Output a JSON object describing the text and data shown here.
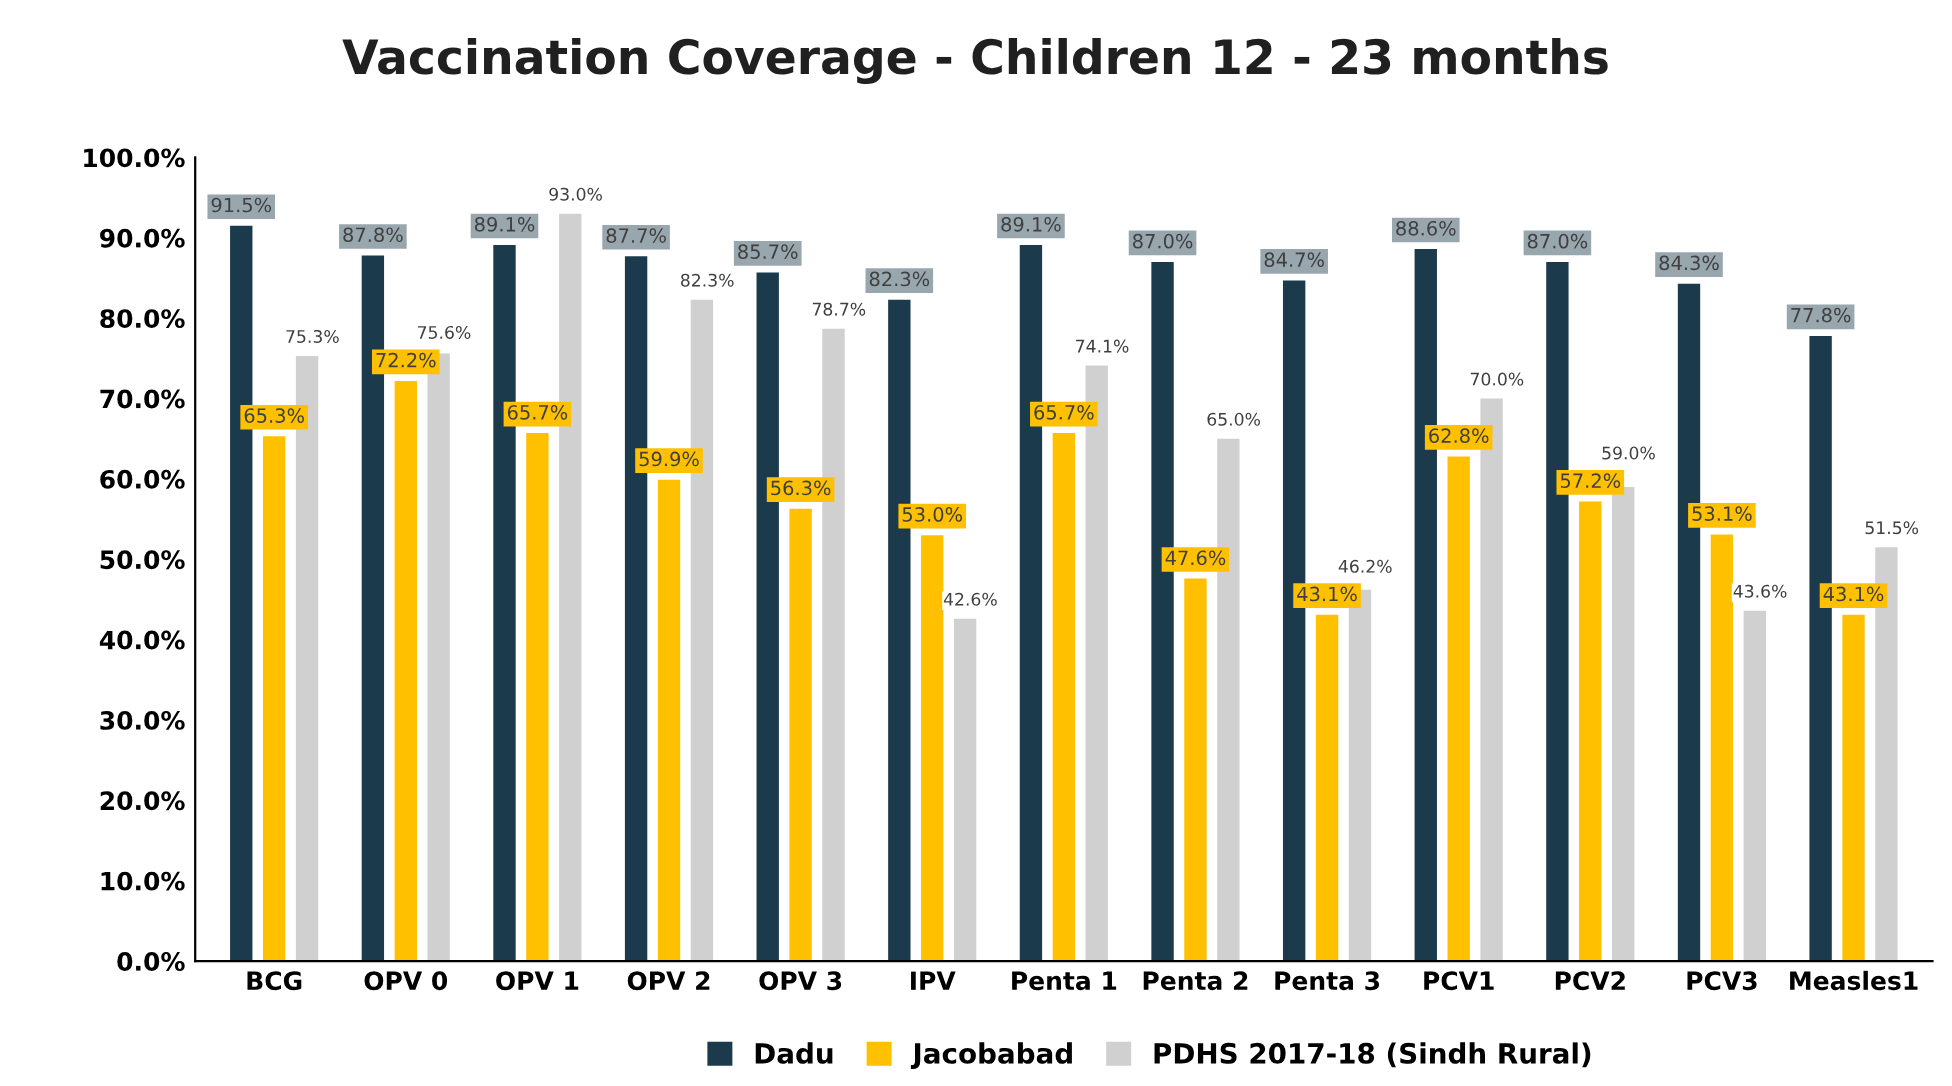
{
  "chart_data": {
    "type": "bar",
    "title": "Vaccination Coverage - Children 12 - 23 months",
    "categories": [
      "BCG",
      "OPV 0",
      "OPV 1",
      "OPV 2",
      "OPV 3",
      "IPV",
      "Penta 1",
      "Penta 2",
      "Penta 3",
      "PCV1",
      "PCV2",
      "PCV3",
      "Measles1"
    ],
    "series": [
      {
        "name": "Dadu",
        "color": "#1b3a4b",
        "values": [
          91.5,
          87.8,
          89.1,
          87.7,
          85.7,
          82.3,
          89.1,
          87.0,
          84.7,
          88.6,
          87.0,
          84.3,
          77.8
        ],
        "value_labels": [
          "91.5%",
          "87.8%",
          "89.1%",
          "87.7%",
          "85.7%",
          "82.3%",
          "89.1%",
          "87.0%",
          "84.7%",
          "88.6%",
          "87.0%",
          "84.3%",
          "77.8%"
        ]
      },
      {
        "name": "Jacobabad",
        "color": "#ffc000",
        "values": [
          65.3,
          72.2,
          65.7,
          59.9,
          56.3,
          53.0,
          65.7,
          47.6,
          43.1,
          62.8,
          57.2,
          53.1,
          43.1
        ],
        "value_labels": [
          "65.3%",
          "72.2%",
          "65.7%",
          "59.9%",
          "56.3%",
          "53.0%",
          "65.7%",
          "47.6%",
          "43.1%",
          "62.8%",
          "57.2%",
          "53.1%",
          "43.1%"
        ]
      },
      {
        "name": "PDHS 2017-18 (Sindh Rural)",
        "color": "#d0d0d0",
        "values": [
          75.3,
          75.6,
          93.0,
          82.3,
          78.7,
          42.6,
          74.1,
          65.0,
          46.2,
          70.0,
          59.0,
          43.6,
          51.5
        ],
        "value_labels": [
          "75.3%",
          "75.6%",
          "93.0%",
          "82.3%",
          "78.7%",
          "42.6%",
          "74.1%",
          "65.0%",
          "46.2%",
          "70.0%",
          "59.0%",
          "43.6%",
          "51.5%"
        ]
      }
    ],
    "ylim": [
      0,
      100
    ],
    "yticks": [
      {
        "value": 0,
        "label": "0.0%"
      },
      {
        "value": 10,
        "label": "10.0%"
      },
      {
        "value": 20,
        "label": "20.0%"
      },
      {
        "value": 30,
        "label": "30.0%"
      },
      {
        "value": 40,
        "label": "40.0%"
      },
      {
        "value": 50,
        "label": "50.0%"
      },
      {
        "value": 60,
        "label": "60.0%"
      },
      {
        "value": 70,
        "label": "70.0%"
      },
      {
        "value": 80,
        "label": "80.0%"
      },
      {
        "value": 90,
        "label": "90.0%"
      },
      {
        "value": 100,
        "label": "100.0%"
      }
    ],
    "grid": false,
    "legend": "bottom"
  }
}
